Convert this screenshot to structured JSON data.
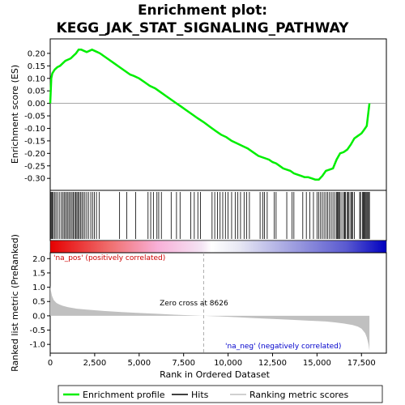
{
  "chart_data": {
    "type": "line",
    "title_line1": "Enrichment plot:",
    "title_line2": "KEGG_JAK_STAT_SIGNALING_PATHWAY",
    "top_panel": {
      "ylabel": "Enrichment score (ES)",
      "ylim": [
        -0.335,
        0.245
      ],
      "yticks": [
        "0.20",
        "0.15",
        "0.10",
        "0.05",
        "0.00",
        "-0.05",
        "-0.10",
        "-0.15",
        "-0.20",
        "-0.25",
        "-0.30"
      ],
      "ytick_values": [
        0.2,
        0.15,
        0.1,
        0.05,
        0.0,
        -0.05,
        -0.1,
        -0.15,
        -0.2,
        -0.25,
        -0.3
      ],
      "series": [
        {
          "name": "Enrichment profile",
          "color": "#00ee00",
          "x": [
            0,
            60,
            120,
            250,
            400,
            550,
            700,
            850,
            1000,
            1150,
            1300,
            1450,
            1600,
            1750,
            1900,
            2050,
            2200,
            2350,
            2500,
            2650,
            2800,
            3000,
            3300,
            3600,
            3900,
            4200,
            4500,
            4700,
            4850,
            5000,
            5300,
            5600,
            5900,
            6200,
            6500,
            6800,
            7100,
            7400,
            7700,
            8000,
            8300,
            8626,
            9000,
            9300,
            9600,
            9900,
            10200,
            10500,
            10800,
            11100,
            11400,
            11700,
            11900,
            12100,
            12300,
            12500,
            12700,
            12900,
            13100,
            13300,
            13500,
            13700,
            13900,
            14100,
            14300,
            14500,
            14700,
            14900,
            15100,
            15300,
            15500,
            15700,
            15900,
            16100,
            16300,
            16500,
            16700,
            16900,
            17100,
            17300,
            17500,
            17600,
            17700,
            17800,
            17850,
            17900,
            17950
          ],
          "y": [
            0.0,
            0.1,
            0.12,
            0.135,
            0.145,
            0.15,
            0.16,
            0.17,
            0.175,
            0.18,
            0.19,
            0.2,
            0.215,
            0.215,
            0.21,
            0.205,
            0.21,
            0.215,
            0.21,
            0.205,
            0.2,
            0.19,
            0.175,
            0.16,
            0.145,
            0.13,
            0.115,
            0.11,
            0.105,
            0.1,
            0.085,
            0.07,
            0.06,
            0.045,
            0.03,
            0.015,
            0.0,
            -0.015,
            -0.03,
            -0.045,
            -0.06,
            -0.075,
            -0.095,
            -0.11,
            -0.125,
            -0.135,
            -0.15,
            -0.16,
            -0.17,
            -0.18,
            -0.195,
            -0.21,
            -0.215,
            -0.22,
            -0.225,
            -0.235,
            -0.24,
            -0.25,
            -0.26,
            -0.265,
            -0.27,
            -0.28,
            -0.285,
            -0.29,
            -0.295,
            -0.295,
            -0.3,
            -0.305,
            -0.305,
            -0.29,
            -0.27,
            -0.265,
            -0.26,
            -0.225,
            -0.2,
            -0.195,
            -0.185,
            -0.165,
            -0.14,
            -0.13,
            -0.12,
            -0.11,
            -0.1,
            -0.09,
            -0.06,
            -0.03,
            0.0
          ]
        }
      ]
    },
    "hits_panel": {
      "hit_ranks": [
        20,
        60,
        110,
        170,
        240,
        320,
        410,
        510,
        620,
        700,
        780,
        850,
        930,
        1000,
        1080,
        1150,
        1230,
        1300,
        1370,
        1440,
        1500,
        1560,
        1630,
        1700,
        1780,
        1860,
        1950,
        2050,
        2150,
        2280,
        2380,
        2480,
        2600,
        2750,
        3900,
        4300,
        4800,
        5500,
        5650,
        5800,
        6000,
        6100,
        6250,
        6800,
        7100,
        7300,
        7900,
        8100,
        8300,
        8450,
        9100,
        9250,
        9400,
        9550,
        9700,
        9850,
        10000,
        10200,
        10400,
        10550,
        10700,
        10900,
        11050,
        11200,
        11800,
        11950,
        12050,
        12200,
        12600,
        12700,
        13300,
        13600,
        13700,
        14200,
        14400,
        14600,
        14800,
        15000,
        15100,
        15200,
        15300,
        15400,
        15500,
        15600,
        15700,
        15800,
        15900,
        16000,
        16100,
        16150,
        16200,
        16250,
        16300,
        16400,
        16500,
        16550,
        16600,
        16700,
        16750,
        16800,
        16900,
        16950,
        17000,
        17100,
        17400,
        17450,
        17550,
        17600,
        17650,
        17700,
        17750,
        17800,
        17850,
        17900,
        17950
      ]
    },
    "metric_panel": {
      "ylabel": "Ranked list metric (PreRanked)",
      "xlabel": "Rank in Ordered Dataset",
      "ylim": [
        -1.25,
        2.15
      ],
      "yticks": [
        "2.0",
        "1.5",
        "1.0",
        "0.5",
        "0.0",
        "-0.5",
        "-1.0"
      ],
      "ytick_values": [
        2.0,
        1.5,
        1.0,
        0.5,
        0.0,
        -0.5,
        -1.0
      ],
      "xlim": [
        0,
        18900
      ],
      "xticks": [
        "0",
        "2,500",
        "5,000",
        "7,500",
        "10,000",
        "12,500",
        "15,000",
        "17,500"
      ],
      "xtick_values": [
        0,
        2500,
        5000,
        7500,
        10000,
        12500,
        15000,
        17500
      ],
      "metric_x": [
        0,
        30,
        100,
        200,
        350,
        500,
        700,
        1000,
        1500,
        2000,
        3000,
        4000,
        5000,
        6000,
        7000,
        8000,
        8626,
        9500,
        10500,
        11500,
        12500,
        13500,
        14500,
        15500,
        16000,
        16500,
        17000,
        17300,
        17500,
        17700,
        17800,
        17900,
        17950
      ],
      "metric_y": [
        1.05,
        0.9,
        0.7,
        0.55,
        0.45,
        0.4,
        0.35,
        0.3,
        0.25,
        0.22,
        0.17,
        0.13,
        0.1,
        0.07,
        0.04,
        0.015,
        0.0,
        -0.02,
        -0.05,
        -0.08,
        -0.11,
        -0.14,
        -0.17,
        -0.2,
        -0.23,
        -0.27,
        -0.32,
        -0.38,
        -0.45,
        -0.6,
        -0.75,
        -1.0,
        -1.22
      ],
      "zero_cross_label": "Zero cross at 8626",
      "zero_cross_rank": 8626,
      "pos_label": "'na_pos' (positively correlated)",
      "neg_label": "'na_neg' (negatively correlated)"
    },
    "colors": {
      "es_line": "#00ee00",
      "hit_line": "#000000",
      "metric_fill": "#c0c0c0",
      "pos_label": "#cc0000",
      "neg_label": "#0000cc",
      "zero_line": "#aaaaaa"
    },
    "legend": [
      {
        "label": "Enrichment profile",
        "color": "#00ee00"
      },
      {
        "label": "Hits",
        "color": "#000000"
      },
      {
        "label": "Ranking metric scores",
        "color": "#c0c0c0"
      }
    ]
  }
}
